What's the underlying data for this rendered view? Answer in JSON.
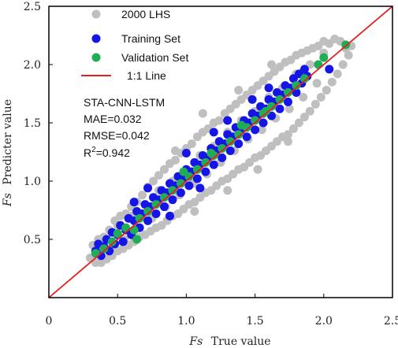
{
  "chart_data": {
    "type": "scatter",
    "xlabel_var": "Fs",
    "xlabel_text": "True value",
    "ylabel_var": "Fs",
    "ylabel_text": "Predicter value",
    "xlim": [
      0,
      2.5
    ],
    "ylim": [
      0,
      2.5
    ],
    "xticks": [
      {
        "value": 0,
        "label": "0"
      },
      {
        "value": 0.5,
        "label": "0.5"
      },
      {
        "value": 1.0,
        "label": "1.0"
      },
      {
        "value": 1.5,
        "label": "1.5"
      },
      {
        "value": 2.0,
        "label": "2.0"
      },
      {
        "value": 2.5,
        "label": "2.5"
      }
    ],
    "yticks": [
      {
        "value": 0.5,
        "label": "0.5"
      },
      {
        "value": 1.0,
        "label": "1.0"
      },
      {
        "value": 1.5,
        "label": "1.5"
      },
      {
        "value": 2.0,
        "label": "2.0"
      },
      {
        "value": 2.5,
        "label": "2.5"
      }
    ],
    "legend_position": "top-left",
    "series": [
      {
        "name": "2000 LHS",
        "kind": "point",
        "color": "#bfbfbf",
        "points": [
          [
            0.3,
            0.34
          ],
          [
            0.32,
            0.45
          ],
          [
            0.34,
            0.3
          ],
          [
            0.36,
            0.5
          ],
          [
            0.38,
            0.3
          ],
          [
            0.4,
            0.52
          ],
          [
            0.42,
            0.33
          ],
          [
            0.44,
            0.58
          ],
          [
            0.46,
            0.36
          ],
          [
            0.48,
            0.66
          ],
          [
            0.5,
            0.4
          ],
          [
            0.52,
            0.7
          ],
          [
            0.54,
            0.42
          ],
          [
            0.56,
            0.72
          ],
          [
            0.58,
            0.45
          ],
          [
            0.6,
            0.78
          ],
          [
            0.62,
            0.48
          ],
          [
            0.64,
            0.82
          ],
          [
            0.66,
            0.52
          ],
          [
            0.68,
            0.88
          ],
          [
            0.7,
            0.54
          ],
          [
            0.72,
            0.95
          ],
          [
            0.74,
            0.57
          ],
          [
            0.76,
            1.0
          ],
          [
            0.78,
            0.6
          ],
          [
            0.8,
            1.05
          ],
          [
            0.82,
            0.62
          ],
          [
            0.84,
            1.1
          ],
          [
            0.86,
            0.66
          ],
          [
            0.88,
            1.15
          ],
          [
            0.9,
            0.7
          ],
          [
            0.92,
            1.18
          ],
          [
            0.94,
            0.72
          ],
          [
            0.96,
            1.24
          ],
          [
            0.98,
            0.76
          ],
          [
            1.0,
            1.28
          ],
          [
            1.02,
            0.8
          ],
          [
            1.04,
            1.32
          ],
          [
            1.06,
            0.82
          ],
          [
            1.08,
            1.38
          ],
          [
            1.1,
            0.86
          ],
          [
            1.12,
            1.42
          ],
          [
            1.14,
            0.9
          ],
          [
            1.16,
            1.45
          ],
          [
            1.18,
            0.92
          ],
          [
            1.2,
            1.5
          ],
          [
            1.22,
            0.96
          ],
          [
            1.24,
            1.52
          ],
          [
            1.26,
            1.0
          ],
          [
            1.28,
            1.58
          ],
          [
            1.3,
            1.02
          ],
          [
            1.32,
            1.62
          ],
          [
            1.34,
            1.06
          ],
          [
            1.36,
            1.66
          ],
          [
            1.38,
            1.1
          ],
          [
            1.4,
            1.7
          ],
          [
            1.42,
            1.12
          ],
          [
            1.44,
            1.74
          ],
          [
            1.46,
            1.16
          ],
          [
            1.48,
            1.78
          ],
          [
            1.5,
            1.2
          ],
          [
            1.52,
            1.82
          ],
          [
            1.54,
            1.22
          ],
          [
            1.56,
            1.86
          ],
          [
            1.58,
            1.26
          ],
          [
            1.6,
            1.9
          ],
          [
            1.62,
            1.3
          ],
          [
            1.64,
            1.94
          ],
          [
            1.66,
            1.34
          ],
          [
            1.68,
            1.98
          ],
          [
            1.7,
            1.38
          ],
          [
            1.72,
            2.02
          ],
          [
            1.74,
            1.4
          ],
          [
            1.76,
            2.04
          ],
          [
            1.78,
            1.45
          ],
          [
            1.8,
            2.08
          ],
          [
            1.82,
            1.5
          ],
          [
            1.84,
            2.1
          ],
          [
            1.86,
            1.55
          ],
          [
            1.88,
            2.12
          ],
          [
            1.9,
            1.6
          ],
          [
            1.92,
            2.14
          ],
          [
            1.94,
            1.66
          ],
          [
            1.96,
            2.16
          ],
          [
            1.98,
            1.72
          ],
          [
            2.0,
            2.2
          ],
          [
            2.02,
            1.78
          ],
          [
            2.04,
            2.18
          ],
          [
            2.06,
            1.85
          ],
          [
            2.08,
            2.22
          ],
          [
            2.1,
            1.92
          ],
          [
            2.12,
            2.2
          ],
          [
            2.14,
            2.0
          ],
          [
            2.16,
            2.14
          ],
          [
            2.18,
            2.08
          ],
          [
            2.2,
            2.16
          ],
          [
            0.5,
            0.62
          ],
          [
            0.6,
            0.7
          ],
          [
            0.7,
            0.8
          ],
          [
            0.8,
            0.92
          ],
          [
            0.9,
            1.0
          ],
          [
            1.0,
            1.1
          ],
          [
            1.1,
            1.22
          ],
          [
            1.2,
            1.3
          ],
          [
            1.3,
            1.42
          ],
          [
            1.4,
            1.52
          ],
          [
            1.5,
            1.6
          ],
          [
            1.6,
            1.72
          ],
          [
            1.7,
            1.8
          ],
          [
            1.8,
            1.92
          ],
          [
            1.9,
            2.0
          ],
          [
            2.0,
            2.1
          ],
          [
            0.45,
            0.42
          ],
          [
            0.55,
            0.5
          ],
          [
            0.65,
            0.6
          ],
          [
            0.75,
            0.68
          ],
          [
            0.85,
            0.78
          ],
          [
            0.95,
            0.88
          ],
          [
            1.05,
            0.98
          ],
          [
            1.15,
            1.06
          ],
          [
            1.25,
            1.16
          ],
          [
            1.35,
            1.26
          ],
          [
            1.45,
            1.36
          ],
          [
            1.55,
            1.44
          ],
          [
            1.65,
            1.54
          ],
          [
            1.75,
            1.62
          ],
          [
            1.85,
            1.72
          ],
          [
            1.95,
            1.84
          ],
          [
            1.12,
            1.58
          ],
          [
            1.38,
            1.78
          ],
          [
            1.62,
            2.0
          ],
          [
            0.92,
            1.26
          ],
          [
            1.74,
            1.34
          ],
          [
            1.52,
            1.1
          ],
          [
            1.3,
            0.92
          ],
          [
            1.06,
            0.74
          ]
        ]
      },
      {
        "name": "Training Set",
        "kind": "point",
        "color": "#1515e8",
        "points": [
          [
            0.34,
            0.4
          ],
          [
            0.36,
            0.46
          ],
          [
            0.38,
            0.36
          ],
          [
            0.4,
            0.44
          ],
          [
            0.42,
            0.5
          ],
          [
            0.44,
            0.4
          ],
          [
            0.46,
            0.56
          ],
          [
            0.48,
            0.46
          ],
          [
            0.5,
            0.54
          ],
          [
            0.52,
            0.62
          ],
          [
            0.54,
            0.48
          ],
          [
            0.56,
            0.58
          ],
          [
            0.58,
            0.68
          ],
          [
            0.6,
            0.54
          ],
          [
            0.62,
            0.66
          ],
          [
            0.64,
            0.74
          ],
          [
            0.66,
            0.6
          ],
          [
            0.68,
            0.72
          ],
          [
            0.7,
            0.8
          ],
          [
            0.72,
            0.66
          ],
          [
            0.74,
            0.78
          ],
          [
            0.76,
            0.86
          ],
          [
            0.78,
            0.72
          ],
          [
            0.8,
            0.84
          ],
          [
            0.82,
            0.92
          ],
          [
            0.84,
            0.78
          ],
          [
            0.86,
            0.9
          ],
          [
            0.88,
            0.98
          ],
          [
            0.9,
            0.84
          ],
          [
            0.92,
            0.96
          ],
          [
            0.94,
            1.04
          ],
          [
            0.96,
            0.9
          ],
          [
            0.98,
            1.02
          ],
          [
            1.0,
            1.1
          ],
          [
            1.02,
            0.96
          ],
          [
            1.04,
            1.08
          ],
          [
            1.06,
            1.16
          ],
          [
            1.08,
            1.02
          ],
          [
            1.1,
            1.14
          ],
          [
            1.12,
            1.22
          ],
          [
            1.14,
            1.08
          ],
          [
            1.16,
            1.2
          ],
          [
            1.18,
            1.28
          ],
          [
            1.2,
            1.14
          ],
          [
            1.22,
            1.26
          ],
          [
            1.24,
            1.34
          ],
          [
            1.26,
            1.2
          ],
          [
            1.28,
            1.32
          ],
          [
            1.3,
            1.4
          ],
          [
            1.32,
            1.26
          ],
          [
            1.34,
            1.38
          ],
          [
            1.36,
            1.46
          ],
          [
            1.38,
            1.32
          ],
          [
            1.4,
            1.44
          ],
          [
            1.42,
            1.52
          ],
          [
            1.44,
            1.38
          ],
          [
            1.46,
            1.5
          ],
          [
            1.48,
            1.58
          ],
          [
            1.5,
            1.44
          ],
          [
            1.52,
            1.56
          ],
          [
            1.54,
            1.64
          ],
          [
            1.56,
            1.5
          ],
          [
            1.58,
            1.62
          ],
          [
            1.6,
            1.7
          ],
          [
            1.62,
            1.56
          ],
          [
            1.64,
            1.68
          ],
          [
            1.66,
            1.76
          ],
          [
            1.68,
            1.62
          ],
          [
            1.7,
            1.74
          ],
          [
            1.72,
            1.82
          ],
          [
            1.74,
            1.68
          ],
          [
            1.76,
            1.8
          ],
          [
            1.78,
            1.88
          ],
          [
            1.8,
            1.76
          ],
          [
            1.82,
            1.92
          ],
          [
            1.84,
            1.84
          ],
          [
            1.86,
            1.96
          ],
          [
            1.88,
            1.9
          ],
          [
            2.04,
            1.96
          ],
          [
            0.62,
            0.82
          ],
          [
            0.72,
            0.94
          ],
          [
            1.0,
            1.24
          ],
          [
            1.2,
            1.42
          ],
          [
            1.3,
            1.52
          ],
          [
            1.48,
            1.7
          ],
          [
            1.6,
            1.8
          ],
          [
            0.88,
            0.7
          ],
          [
            1.1,
            0.94
          ]
        ]
      },
      {
        "name": "Validation Set",
        "kind": "point",
        "color": "#1fad55",
        "points": [
          [
            0.34,
            0.38
          ],
          [
            0.4,
            0.42
          ],
          [
            0.46,
            0.48
          ],
          [
            0.5,
            0.55
          ],
          [
            0.56,
            0.6
          ],
          [
            0.62,
            0.58
          ],
          [
            0.66,
            0.68
          ],
          [
            0.72,
            0.74
          ],
          [
            0.78,
            0.8
          ],
          [
            0.84,
            0.86
          ],
          [
            0.9,
            0.92
          ],
          [
            0.96,
            0.98
          ],
          [
            1.02,
            1.04
          ],
          [
            1.08,
            1.1
          ],
          [
            1.14,
            1.16
          ],
          [
            1.2,
            1.22
          ],
          [
            1.26,
            1.28
          ],
          [
            1.32,
            1.34
          ],
          [
            1.38,
            1.4
          ],
          [
            1.44,
            1.46
          ],
          [
            1.5,
            1.52
          ],
          [
            1.56,
            1.58
          ],
          [
            1.62,
            1.64
          ],
          [
            1.68,
            1.7
          ],
          [
            1.74,
            1.76
          ],
          [
            1.8,
            1.82
          ],
          [
            1.86,
            1.88
          ],
          [
            1.96,
            2.0
          ],
          [
            2.0,
            2.06
          ],
          [
            2.16,
            2.17
          ],
          [
            0.64,
            0.5
          ],
          [
            0.98,
            1.08
          ],
          [
            1.18,
            1.24
          ],
          [
            1.4,
            1.48
          ],
          [
            1.58,
            1.6
          ]
        ]
      },
      {
        "name": "1:1 Line",
        "kind": "line",
        "color": "#e81e1e",
        "from": [
          0,
          0
        ],
        "to": [
          2.5,
          2.5
        ]
      }
    ],
    "annotations": [
      "STA-CNN-LSTM",
      "MAE=0.032",
      "RMSE=0.042"
    ],
    "r2_label": {
      "base": "R",
      "sup": "2",
      "value": "=0.942"
    }
  }
}
